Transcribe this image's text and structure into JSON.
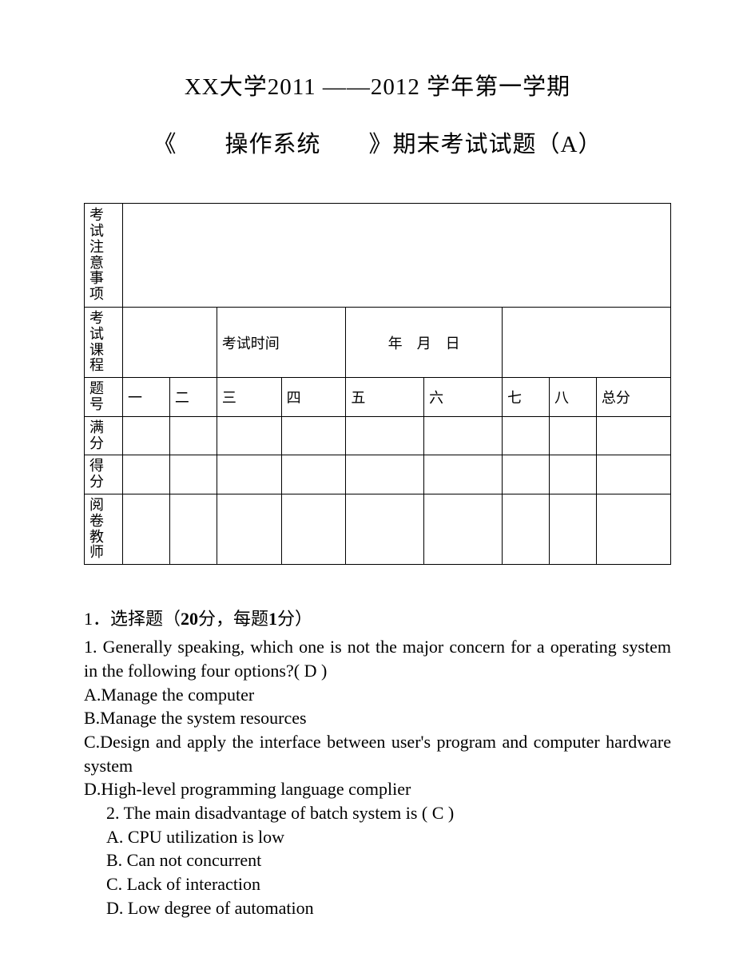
{
  "header": {
    "line1": "XX大学2011 ——2012 学年第一学期",
    "line2": "《　　操作系统　　》期末考试试题（A）"
  },
  "table": {
    "notice_label": "考试注意事项",
    "course_label": "考试课程",
    "time_label": "考试时间",
    "date_value": "年　月　日",
    "row_qnum_label": "题号",
    "qnums": [
      "一",
      "二",
      "三",
      "四",
      "五",
      "六",
      "七",
      "八",
      "总分"
    ],
    "row_full_label": "满分",
    "row_score_label": "得分",
    "row_teacher_label": "阅卷教师"
  },
  "section1": {
    "prefix": "1．选择题（",
    "bold": "20",
    "mid": "分，每题",
    "bold2": "1",
    "suffix": "分）"
  },
  "q1": {
    "stem": "1. Generally speaking, which one is not the major concern for a operating system in the following four options?(  D  )",
    "a": "A.Manage the computer",
    "b": "B.Manage the system resources",
    "c": "C.Design and apply the interface between user's program and computer hardware system",
    "d": "D.High-level programming language complier"
  },
  "q2": {
    "stem": "2.  The main disadvantage of batch system is (  C  )",
    "a": "A.  CPU utilization is low",
    "b": "B.  Can not concurrent",
    "c": "C.  Lack of interaction",
    "d": "D.  Low degree of automation"
  }
}
